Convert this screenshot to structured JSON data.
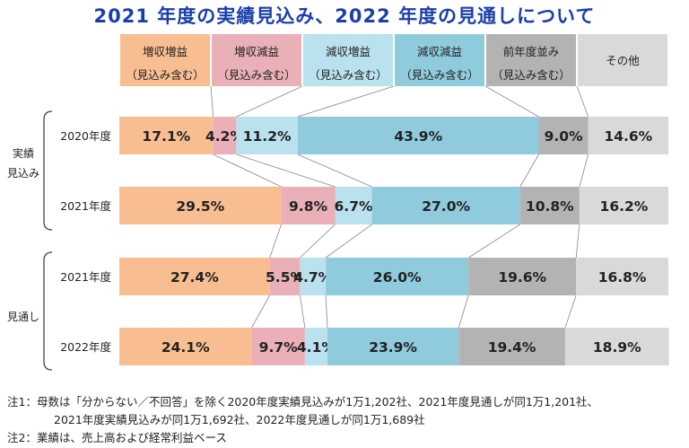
{
  "title": "2021 年度の実績見込み、2022 年度の見通しについて",
  "legend": [
    {
      "line1": "増収増益",
      "line2": "（見込み含む）",
      "color": "#f8be92"
    },
    {
      "line1": "増収減益",
      "line2": "（見込み含む）",
      "color": "#e9b0b7"
    },
    {
      "line1": "減収増益",
      "line2": "（見込み含む）",
      "color": "#b9e1ee"
    },
    {
      "line1": "減収減益",
      "line2": "（見込み含む）",
      "color": "#8fcadd"
    },
    {
      "line1": "前年度並み",
      "line2": "（見込み含む）",
      "color": "#b3b3b3"
    },
    {
      "line1": "その他",
      "line2": "",
      "color": "#d9d9d9"
    }
  ],
  "groups": {
    "actual_line1": "実績",
    "actual_line2": "見込み",
    "forecast": "見通し"
  },
  "chart_data": {
    "type": "bar",
    "orientation": "horizontal",
    "stacked": true,
    "categories": [
      "2020年度",
      "2021年度",
      "2021年度",
      "2022年度"
    ],
    "series": [
      {
        "name": "増収増益（見込み含む）",
        "values": [
          17.1,
          29.5,
          27.4,
          24.1
        ]
      },
      {
        "name": "増収減益（見込み含む）",
        "values": [
          4.2,
          9.8,
          5.5,
          9.7
        ]
      },
      {
        "name": "減収増益（見込み含む）",
        "values": [
          11.2,
          6.7,
          4.7,
          4.1
        ]
      },
      {
        "name": "減収減益（見込み含む）",
        "values": [
          43.9,
          27.0,
          26.0,
          23.9
        ]
      },
      {
        "name": "前年度並み（見込み含む）",
        "values": [
          9.0,
          10.8,
          19.6,
          19.4
        ]
      },
      {
        "name": "その他",
        "values": [
          14.6,
          16.2,
          16.8,
          18.9
        ]
      }
    ],
    "labels": [
      [
        "17.1%",
        "4.2%",
        "11.2%",
        "43.9%",
        "9.0%",
        "14.6%"
      ],
      [
        "29.5%",
        "9.8%",
        "6.7%",
        "27.0%",
        "10.8%",
        "16.2%"
      ],
      [
        "27.4%",
        "5.5%",
        "4.7%",
        "26.0%",
        "19.6%",
        "16.8%"
      ],
      [
        "24.1%",
        "9.7%",
        "4.1%",
        "23.9%",
        "19.4%",
        "18.9%"
      ]
    ],
    "xlim": [
      0,
      100
    ],
    "grid": false
  },
  "notes": [
    "注1：母数は「分からない／不回答」を除く2020年度実績見込みが1万1,202社、2021年度見通しが同1万1,201社、",
    "2021年度実績見込みが同1万1,692社、2022年度見通しが同1万1,689社",
    "注2：業績は、売上高および経常利益ベース"
  ]
}
